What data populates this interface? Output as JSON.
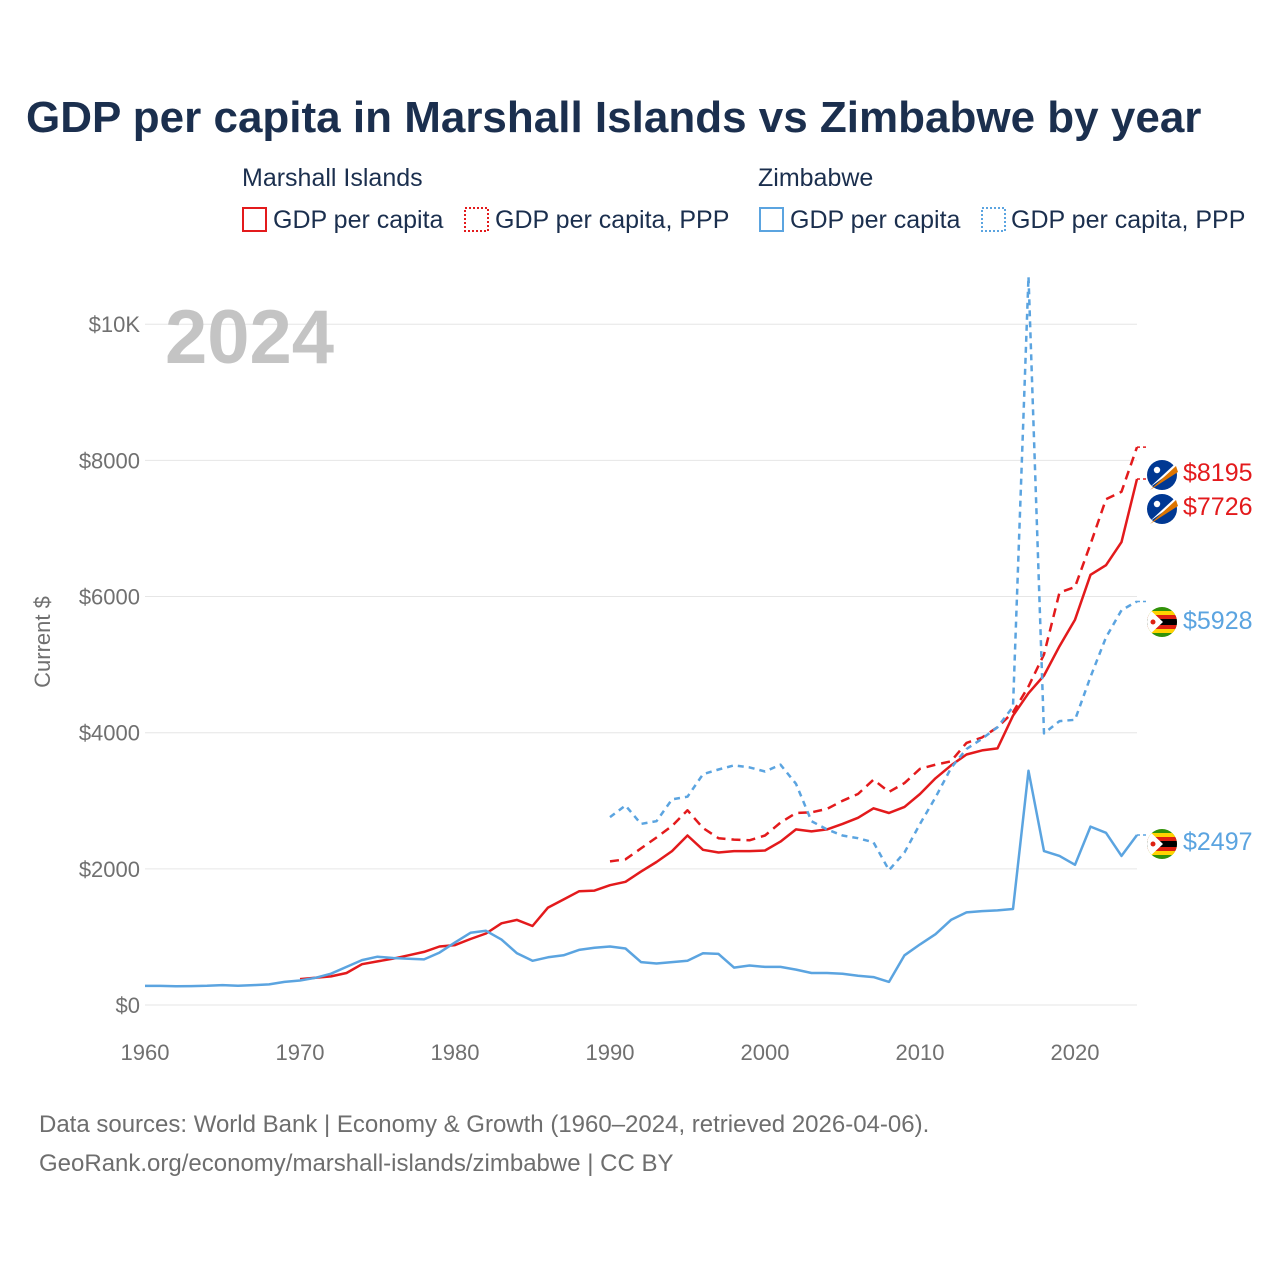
{
  "chart_data": {
    "type": "line",
    "title": "GDP per capita in Marshall Islands vs Zimbabwe by year",
    "xlabel": "",
    "ylabel": "Current $",
    "xlim": [
      1960,
      2024
    ],
    "ylim": [
      0,
      10400
    ],
    "x_ticks": [
      1960,
      1970,
      1980,
      1990,
      2000,
      2010,
      2020
    ],
    "y_ticks": [
      {
        "value": 0,
        "label": "$0"
      },
      {
        "value": 2000,
        "label": "$2000"
      },
      {
        "value": 4000,
        "label": "$4000"
      },
      {
        "value": 6000,
        "label": "$6000"
      },
      {
        "value": 8000,
        "label": "$8000"
      },
      {
        "value": 10000,
        "label": "$10K"
      }
    ],
    "grid": true,
    "year_display": "2024",
    "legend": {
      "groups": [
        {
          "name": "Marshall Islands",
          "items": [
            "GDP per capita",
            "GDP per capita, PPP"
          ]
        },
        {
          "name": "Zimbabwe",
          "items": [
            "GDP per capita",
            "GDP per capita, PPP"
          ]
        }
      ]
    },
    "series": [
      {
        "name": "Marshall Islands GDP per capita",
        "country": "Marshall Islands",
        "color": "#e31a1c",
        "style": "solid",
        "end_label": "$7726",
        "points": [
          [
            1970,
            380
          ],
          [
            1971,
            400
          ],
          [
            1972,
            420
          ],
          [
            1973,
            470
          ],
          [
            1974,
            600
          ],
          [
            1975,
            640
          ],
          [
            1976,
            680
          ],
          [
            1977,
            730
          ],
          [
            1978,
            780
          ],
          [
            1979,
            860
          ],
          [
            1980,
            880
          ],
          [
            1981,
            970
          ],
          [
            1982,
            1050
          ],
          [
            1983,
            1200
          ],
          [
            1984,
            1250
          ],
          [
            1985,
            1160
          ],
          [
            1986,
            1430
          ],
          [
            1987,
            1550
          ],
          [
            1988,
            1670
          ],
          [
            1989,
            1680
          ],
          [
            1990,
            1760
          ],
          [
            1991,
            1810
          ],
          [
            1992,
            1960
          ],
          [
            1993,
            2100
          ],
          [
            1994,
            2260
          ],
          [
            1995,
            2490
          ],
          [
            1996,
            2280
          ],
          [
            1997,
            2240
          ],
          [
            1998,
            2260
          ],
          [
            1999,
            2260
          ],
          [
            2000,
            2270
          ],
          [
            2001,
            2400
          ],
          [
            2002,
            2580
          ],
          [
            2003,
            2550
          ],
          [
            2004,
            2580
          ],
          [
            2005,
            2660
          ],
          [
            2006,
            2750
          ],
          [
            2007,
            2890
          ],
          [
            2008,
            2820
          ],
          [
            2009,
            2910
          ],
          [
            2010,
            3100
          ],
          [
            2011,
            3330
          ],
          [
            2012,
            3520
          ],
          [
            2013,
            3680
          ],
          [
            2014,
            3740
          ],
          [
            2015,
            3770
          ],
          [
            2016,
            4250
          ],
          [
            2017,
            4580
          ],
          [
            2018,
            4840
          ],
          [
            2019,
            5270
          ],
          [
            2020,
            5660
          ],
          [
            2021,
            6320
          ],
          [
            2022,
            6460
          ],
          [
            2023,
            6800
          ],
          [
            2024,
            7726
          ]
        ]
      },
      {
        "name": "Marshall Islands GDP per capita, PPP",
        "country": "Marshall Islands",
        "color": "#e31a1c",
        "style": "dashed",
        "end_label": "$8195",
        "points": [
          [
            1990,
            2110
          ],
          [
            1991,
            2140
          ],
          [
            1992,
            2300
          ],
          [
            1993,
            2460
          ],
          [
            1994,
            2630
          ],
          [
            1995,
            2860
          ],
          [
            1996,
            2600
          ],
          [
            1997,
            2450
          ],
          [
            1998,
            2430
          ],
          [
            1999,
            2420
          ],
          [
            2000,
            2490
          ],
          [
            2001,
            2680
          ],
          [
            2002,
            2820
          ],
          [
            2003,
            2830
          ],
          [
            2004,
            2880
          ],
          [
            2005,
            3000
          ],
          [
            2006,
            3100
          ],
          [
            2007,
            3310
          ],
          [
            2008,
            3130
          ],
          [
            2009,
            3260
          ],
          [
            2010,
            3470
          ],
          [
            2011,
            3530
          ],
          [
            2012,
            3580
          ],
          [
            2013,
            3850
          ],
          [
            2014,
            3930
          ],
          [
            2015,
            4080
          ],
          [
            2016,
            4300
          ],
          [
            2017,
            4680
          ],
          [
            2018,
            5150
          ],
          [
            2019,
            6060
          ],
          [
            2020,
            6140
          ],
          [
            2021,
            6770
          ],
          [
            2022,
            7430
          ],
          [
            2023,
            7540
          ],
          [
            2024,
            8195
          ]
        ]
      },
      {
        "name": "Zimbabwe GDP per capita",
        "country": "Zimbabwe",
        "color": "#5ba4e0",
        "style": "solid",
        "end_label": "$2497",
        "points": [
          [
            1960,
            280
          ],
          [
            1961,
            280
          ],
          [
            1962,
            275
          ],
          [
            1963,
            278
          ],
          [
            1964,
            282
          ],
          [
            1965,
            292
          ],
          [
            1966,
            282
          ],
          [
            1967,
            292
          ],
          [
            1968,
            302
          ],
          [
            1969,
            340
          ],
          [
            1970,
            360
          ],
          [
            1971,
            400
          ],
          [
            1972,
            460
          ],
          [
            1973,
            560
          ],
          [
            1974,
            660
          ],
          [
            1975,
            710
          ],
          [
            1976,
            690
          ],
          [
            1977,
            680
          ],
          [
            1978,
            670
          ],
          [
            1979,
            770
          ],
          [
            1980,
            920
          ],
          [
            1981,
            1060
          ],
          [
            1982,
            1090
          ],
          [
            1983,
            960
          ],
          [
            1984,
            760
          ],
          [
            1985,
            650
          ],
          [
            1986,
            700
          ],
          [
            1987,
            730
          ],
          [
            1988,
            810
          ],
          [
            1989,
            840
          ],
          [
            1990,
            860
          ],
          [
            1991,
            830
          ],
          [
            1992,
            630
          ],
          [
            1993,
            610
          ],
          [
            1994,
            630
          ],
          [
            1995,
            650
          ],
          [
            1996,
            760
          ],
          [
            1997,
            750
          ],
          [
            1998,
            550
          ],
          [
            1999,
            580
          ],
          [
            2000,
            560
          ],
          [
            2001,
            560
          ],
          [
            2002,
            520
          ],
          [
            2003,
            470
          ],
          [
            2004,
            470
          ],
          [
            2005,
            460
          ],
          [
            2006,
            430
          ],
          [
            2007,
            410
          ],
          [
            2008,
            340
          ],
          [
            2009,
            730
          ],
          [
            2010,
            890
          ],
          [
            2011,
            1040
          ],
          [
            2012,
            1250
          ],
          [
            2013,
            1360
          ],
          [
            2014,
            1380
          ],
          [
            2015,
            1390
          ],
          [
            2016,
            1410
          ],
          [
            2017,
            3440
          ],
          [
            2018,
            2260
          ],
          [
            2019,
            2190
          ],
          [
            2020,
            2060
          ],
          [
            2021,
            2620
          ],
          [
            2022,
            2530
          ],
          [
            2023,
            2190
          ],
          [
            2024,
            2497
          ]
        ]
      },
      {
        "name": "Zimbabwe GDP per capita, PPP",
        "country": "Zimbabwe",
        "color": "#5ba4e0",
        "style": "dotted",
        "end_label": "$5928",
        "points": [
          [
            1990,
            2760
          ],
          [
            1991,
            2930
          ],
          [
            1992,
            2660
          ],
          [
            1993,
            2700
          ],
          [
            1994,
            3020
          ],
          [
            1995,
            3060
          ],
          [
            1996,
            3390
          ],
          [
            1997,
            3460
          ],
          [
            1998,
            3520
          ],
          [
            1999,
            3490
          ],
          [
            2000,
            3430
          ],
          [
            2001,
            3530
          ],
          [
            2002,
            3250
          ],
          [
            2003,
            2700
          ],
          [
            2004,
            2580
          ],
          [
            2005,
            2490
          ],
          [
            2006,
            2450
          ],
          [
            2007,
            2390
          ],
          [
            2008,
            1980
          ],
          [
            2009,
            2240
          ],
          [
            2010,
            2660
          ],
          [
            2011,
            3050
          ],
          [
            2012,
            3480
          ],
          [
            2013,
            3760
          ],
          [
            2014,
            3910
          ],
          [
            2015,
            4080
          ],
          [
            2016,
            4380
          ],
          [
            2017,
            10700
          ],
          [
            2018,
            3990
          ],
          [
            2019,
            4170
          ],
          [
            2020,
            4190
          ],
          [
            2021,
            4820
          ],
          [
            2022,
            5400
          ],
          [
            2023,
            5800
          ],
          [
            2024,
            5928
          ]
        ]
      }
    ]
  },
  "source": {
    "line1": "Data sources: World Bank | Economy & Growth (1960–2024, retrieved 2026-04-06).",
    "line2": "GeoRank.org/economy/marshall-islands/zimbabwe | CC BY"
  }
}
